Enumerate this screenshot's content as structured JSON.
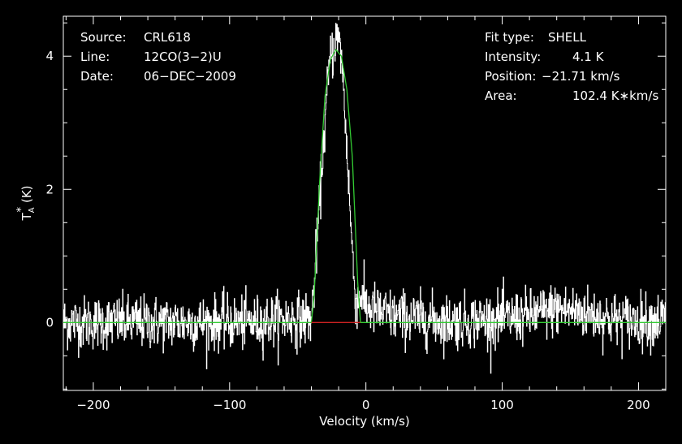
{
  "chart_data": {
    "type": "line",
    "title": "",
    "xlabel": "Velocity (km/s)",
    "ylabel": "T",
    "ylabel_sub": "A",
    "ylabel_sup": "*",
    "ylabel_unit": "(K)",
    "xlim": [
      -222,
      220
    ],
    "ylim": [
      -1.02,
      4.6
    ],
    "xticks": [
      -200,
      -100,
      0,
      100,
      200
    ],
    "xtick_labels": [
      "−200",
      "−100",
      "0",
      "100",
      "200"
    ],
    "yticks": [
      0,
      2,
      4
    ],
    "ytick_labels": [
      "0",
      "2",
      "4"
    ],
    "grid": false,
    "noise_sigma": 0.2,
    "series": [
      {
        "role": "observed spectrum",
        "color": "#ffffff",
        "x": [
          -220,
          -200,
          -180,
          -160,
          -140,
          -120,
          -100,
          -80,
          -60,
          -50,
          -42,
          -40,
          -38,
          -35,
          -32,
          -30,
          -28,
          -26,
          -24,
          -22,
          -20,
          -18,
          -16,
          -14,
          -12,
          -10,
          -8,
          -6,
          -4,
          -2,
          0,
          10,
          20,
          40,
          60,
          80,
          100,
          120,
          140,
          160,
          180,
          200,
          220
        ],
        "y": [
          0,
          0,
          0,
          0,
          0,
          0,
          0,
          0,
          0.05,
          0.05,
          0.05,
          0.05,
          0.6,
          1.5,
          2.5,
          3.0,
          3.6,
          4.0,
          4.1,
          4.3,
          4.2,
          4.0,
          3.3,
          2.6,
          1.8,
          1.0,
          0.4,
          0.3,
          0.45,
          0.3,
          0.25,
          0.15,
          0.1,
          0.05,
          0.02,
          0.03,
          0.05,
          0.1,
          0.2,
          0.15,
          0.05,
          0.02,
          0.05
        ]
      },
      {
        "role": "SHELL fit",
        "color": "#33cc33",
        "x": [
          -222,
          -40,
          -38,
          -34,
          -30,
          -26,
          -22,
          -18,
          -14,
          -10,
          -6,
          -4,
          220
        ],
        "y": [
          0,
          0,
          0.4,
          2.1,
          3.4,
          3.95,
          4.1,
          4.0,
          3.5,
          2.5,
          0.6,
          0,
          0
        ]
      },
      {
        "role": "baseline window",
        "color": "#cc2222",
        "x": [
          -40,
          -4
        ],
        "y": [
          0,
          0
        ]
      }
    ]
  },
  "info_left": [
    {
      "key": "Source:",
      "value": "CRL618"
    },
    {
      "key": "Line:",
      "value": "12CO(3−2)U"
    },
    {
      "key": "Date:",
      "value": "06−DEC−2009"
    }
  ],
  "info_right": [
    {
      "key": "Fit type:",
      "value": "SHELL"
    },
    {
      "key": "Intensity:",
      "value": "4.1 K"
    },
    {
      "key": "Position:",
      "value": "−21.71 km/s"
    },
    {
      "key": "Area:",
      "value": "102.4 K∗km/s"
    }
  ]
}
